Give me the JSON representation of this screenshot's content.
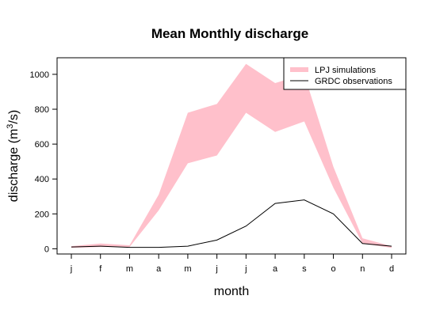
{
  "chart_data": {
    "type": "area",
    "title": "Mean Monthly discharge",
    "xlabel": "month",
    "ylabel_main": "discharge (m",
    "ylabel_sup": "3",
    "ylabel_tail": "/s)",
    "categories": [
      "j",
      "f",
      "m",
      "a",
      "m",
      "j",
      "j",
      "a",
      "s",
      "o",
      "n",
      "d"
    ],
    "ylim": [
      -30,
      1095
    ],
    "yticks": [
      0,
      200,
      400,
      600,
      800,
      1000
    ],
    "legend_position": "top-right",
    "band": {
      "name": "LPJ simulations",
      "color": "#ffc0cb",
      "lower": [
        5,
        10,
        10,
        220,
        490,
        535,
        780,
        670,
        730,
        350,
        30,
        5
      ],
      "upper": [
        15,
        30,
        20,
        310,
        780,
        830,
        1060,
        950,
        1000,
        470,
        60,
        15
      ]
    },
    "series": [
      {
        "name": "GRDC observations",
        "color": "#000000",
        "values": [
          10,
          15,
          8,
          8,
          15,
          50,
          130,
          260,
          280,
          200,
          30,
          15
        ]
      }
    ]
  }
}
